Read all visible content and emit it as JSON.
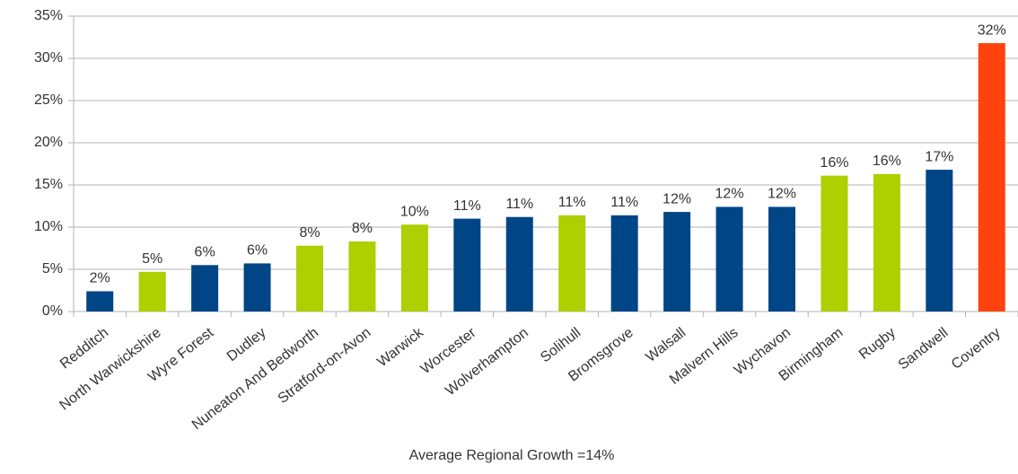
{
  "chart_data": {
    "type": "bar",
    "x_label": "Average Regional Growth =14%",
    "categories": [
      "Redditch",
      "North Warwickshire",
      "Wyre Forest",
      "Dudley",
      "Nuneaton And Bedworth",
      "Stratford-on-Avon",
      "Warwick",
      "Worcester",
      "Wolverhampton",
      "Solihull",
      "Bromsgrove",
      "Walsall",
      "Malvern Hills",
      "Wychavon",
      "Birmingham",
      "Rugby",
      "Sandwell",
      "Coventry"
    ],
    "values": [
      2.4,
      4.7,
      5.5,
      5.7,
      7.8,
      8.3,
      10.3,
      11.0,
      11.2,
      11.4,
      11.4,
      11.8,
      12.4,
      12.4,
      16.1,
      16.3,
      16.8,
      31.8
    ],
    "value_labels": [
      "2%",
      "5%",
      "6%",
      "6%",
      "8%",
      "8%",
      "10%",
      "11%",
      "11%",
      "11%",
      "11%",
      "12%",
      "12%",
      "12%",
      "16%",
      "16%",
      "17%",
      "32%"
    ],
    "colors": [
      "#004586",
      "#aecf00",
      "#004586",
      "#004586",
      "#aecf00",
      "#aecf00",
      "#aecf00",
      "#004586",
      "#004586",
      "#aecf00",
      "#004586",
      "#004586",
      "#004586",
      "#004586",
      "#aecf00",
      "#aecf00",
      "#004586",
      "#ff420e"
    ],
    "ylim": [
      0,
      35
    ],
    "yticks": [
      {
        "value": 0,
        "label": "0%"
      },
      {
        "value": 5,
        "label": "5%"
      },
      {
        "value": 10,
        "label": "10%"
      },
      {
        "value": 15,
        "label": "15%"
      },
      {
        "value": 20,
        "label": "20%"
      },
      {
        "value": 25,
        "label": "25%"
      },
      {
        "value": 30,
        "label": "30%"
      },
      {
        "value": 35,
        "label": "35%"
      }
    ],
    "grid": true
  }
}
